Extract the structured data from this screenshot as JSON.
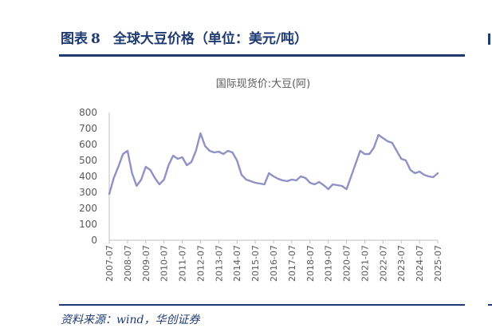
{
  "figure": {
    "label": "图表",
    "number": "8",
    "title": "全球大豆价格（单位：美元/吨）",
    "source": "资料来源：wind，华创证券"
  },
  "colors": {
    "accent": "#1f3b73",
    "series": "#8e92c4",
    "axis": "#bfbfbf",
    "text": "#595959"
  },
  "chart_data": {
    "type": "line",
    "title": "国际现货价:大豆(阿)",
    "xlabel": "",
    "ylabel": "",
    "ylim": [
      0,
      800
    ],
    "yticks": [
      0,
      100,
      200,
      300,
      400,
      500,
      600,
      700,
      800
    ],
    "grid": false,
    "legend": "none",
    "xticks": [
      "2007-07",
      "2008-07",
      "2009-07",
      "2010-07",
      "2011-07",
      "2012-07",
      "2013-07",
      "2014-07",
      "2015-07",
      "2016-07",
      "2017-07",
      "2018-07",
      "2019-07",
      "2020-07",
      "2021-07",
      "2022-07",
      "2023-07",
      "2024-07",
      "2025-07"
    ],
    "series": [
      {
        "name": "国际现货价:大豆(阿)",
        "x": [
          "2007-07",
          "2007-10",
          "2008-01",
          "2008-04",
          "2008-07",
          "2008-10",
          "2009-01",
          "2009-04",
          "2009-07",
          "2009-10",
          "2010-01",
          "2010-04",
          "2010-07",
          "2010-10",
          "2011-01",
          "2011-04",
          "2011-07",
          "2011-10",
          "2012-01",
          "2012-04",
          "2012-07",
          "2012-10",
          "2013-01",
          "2013-04",
          "2013-07",
          "2013-10",
          "2014-01",
          "2014-04",
          "2014-07",
          "2014-10",
          "2015-01",
          "2015-04",
          "2015-07",
          "2015-10",
          "2016-01",
          "2016-04",
          "2016-07",
          "2016-10",
          "2017-01",
          "2017-04",
          "2017-07",
          "2017-10",
          "2018-01",
          "2018-04",
          "2018-07",
          "2018-10",
          "2019-01",
          "2019-04",
          "2019-07",
          "2019-10",
          "2020-01",
          "2020-04",
          "2020-07",
          "2020-10",
          "2021-01",
          "2021-04",
          "2021-07",
          "2021-10",
          "2022-01",
          "2022-04",
          "2022-07",
          "2022-10",
          "2023-01",
          "2023-04",
          "2023-07",
          "2023-10",
          "2024-01",
          "2024-04",
          "2024-07",
          "2024-10",
          "2025-01",
          "2025-04",
          "2025-07"
        ],
        "values": [
          290,
          390,
          460,
          540,
          560,
          420,
          340,
          380,
          460,
          440,
          390,
          350,
          380,
          470,
          530,
          510,
          520,
          470,
          490,
          560,
          670,
          590,
          560,
          550,
          555,
          540,
          560,
          550,
          500,
          410,
          380,
          370,
          360,
          355,
          350,
          420,
          400,
          385,
          375,
          370,
          380,
          375,
          400,
          390,
          360,
          350,
          365,
          345,
          320,
          350,
          345,
          340,
          320,
          400,
          480,
          560,
          540,
          540,
          580,
          660,
          640,
          620,
          610,
          560,
          510,
          500,
          440,
          420,
          430,
          410,
          400,
          395,
          420
        ]
      }
    ]
  }
}
